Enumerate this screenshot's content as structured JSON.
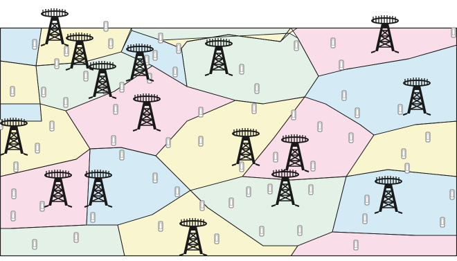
{
  "diagram": {
    "kind": "voronoi-cell-coverage",
    "palette": {
      "green": "#e4f1e6",
      "yellow": "#f8f5cf",
      "blue": "#d4ebf5",
      "pink": "#f9dde9",
      "edge": "#1a1a1a",
      "tower": "#1a1a1a",
      "phone": "#7a7a7a"
    },
    "cell_colors": [
      "green",
      "yellow",
      "blue",
      "pink"
    ],
    "icons": {
      "base_station": "cell-tower-icon",
      "device": "mobile-phone-icon"
    }
  }
}
